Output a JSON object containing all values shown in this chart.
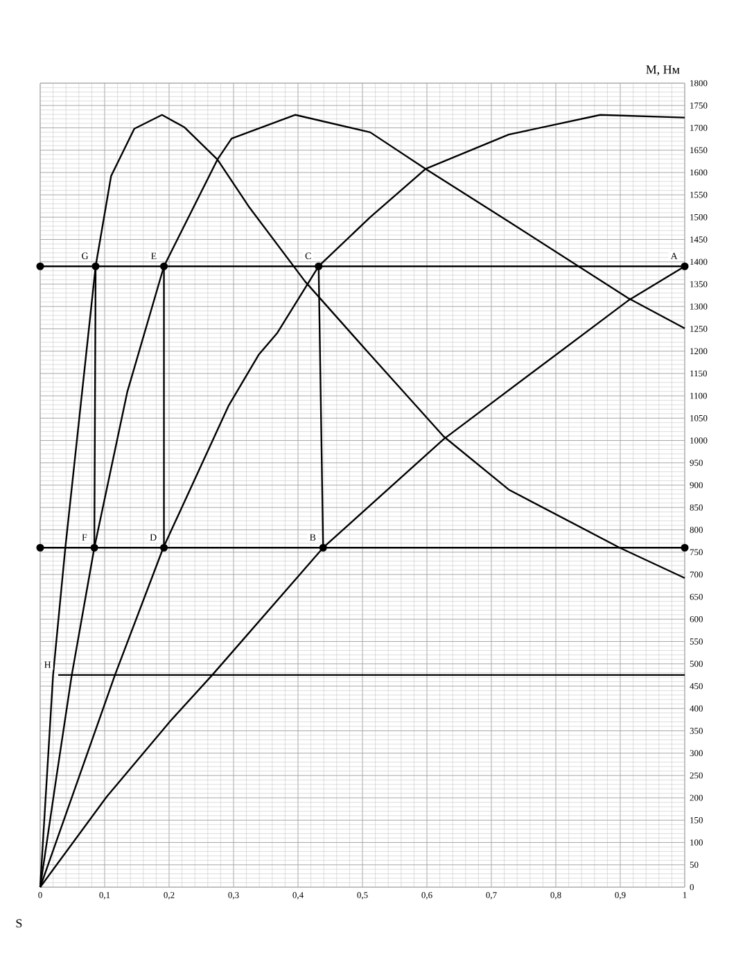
{
  "chart_data": {
    "type": "line",
    "xlabel": "S",
    "ylabel": "M, Нм",
    "xlim": [
      0,
      1
    ],
    "ylim": [
      0,
      1800
    ],
    "xticks": [
      0,
      {
        "value": 0.1,
        "label": "0,1"
      },
      {
        "value": 0.2,
        "label": "0,2"
      },
      {
        "value": 0.3,
        "label": "0,3"
      },
      {
        "value": 0.4,
        "label": "0,4"
      },
      {
        "value": 0.5,
        "label": "0,5"
      },
      {
        "value": 0.6,
        "label": "0,6"
      },
      {
        "value": 0.7,
        "label": "0,7"
      },
      {
        "value": 0.8,
        "label": "0,8"
      },
      {
        "value": 0.9,
        "label": "0,9"
      },
      1
    ],
    "yticks": [
      0,
      50,
      100,
      150,
      200,
      250,
      300,
      350,
      400,
      450,
      500,
      550,
      600,
      650,
      700,
      750,
      800,
      850,
      900,
      950,
      1000,
      1050,
      1100,
      1150,
      1200,
      1250,
      1300,
      1350,
      1400,
      1450,
      1500,
      1550,
      1600,
      1650,
      1700,
      1750,
      1800
    ],
    "grid": true,
    "marker": "none",
    "line_style": "solid",
    "series": [
      {
        "color": "#000000",
        "x": [
          0,
          0.02,
          0.039,
          0.086,
          0.11,
          0.146,
          0.189,
          0.224,
          0.275,
          0.325,
          0.411,
          0.512,
          0.626,
          0.727,
          0.899,
          1
        ],
        "values": [
          0,
          475,
          760,
          1390,
          1592,
          1698,
          1729,
          1701,
          1629,
          1521,
          1356,
          1192,
          1009,
          890,
          760,
          692
        ]
      },
      {
        "color": "#000000",
        "x": [
          0,
          0.025,
          0.049,
          0.084,
          0.135,
          0.192,
          0.275,
          0.297,
          0.396,
          0.512,
          0.598,
          0.727,
          0.912,
          1
        ],
        "values": [
          0,
          245,
          475,
          760,
          1108,
          1390,
          1629,
          1676,
          1729,
          1690,
          1608,
          1490,
          1319,
          1251
        ]
      },
      {
        "color": "#000000",
        "x": [
          0,
          0.116,
          0.191,
          0.292,
          0.339,
          0.368,
          0.432,
          0.512,
          0.598,
          0.727,
          0.869,
          1
        ],
        "values": [
          0,
          475,
          760,
          1077,
          1192,
          1241,
          1390,
          1500,
          1608,
          1685,
          1729,
          1723
        ]
      },
      {
        "color": "#000000",
        "x": [
          0,
          0.103,
          0.202,
          0.267,
          0.439,
          0.626,
          0.912,
          1
        ],
        "values": [
          0,
          202,
          372,
          475,
          760,
          1003,
          1313,
          1390
        ]
      },
      {
        "color": "#000000",
        "x": [
          0.028,
          1
        ],
        "values": [
          475,
          475
        ]
      },
      {
        "color": "#000000",
        "x": [
          0.086,
          0.084
        ],
        "values": [
          1390,
          760
        ]
      },
      {
        "color": "#000000",
        "x": [
          0.192,
          0.192
        ],
        "values": [
          1390,
          760
        ]
      },
      {
        "color": "#000000",
        "x": [
          0.432,
          0.439
        ],
        "values": [
          1390,
          760
        ]
      },
      {
        "color": "#000000",
        "x": [
          0,
          1
        ],
        "values": [
          1390,
          1390
        ]
      },
      {
        "color": "#000000",
        "x": [
          0,
          1
        ],
        "values": [
          760,
          760
        ]
      },
      {
        "type": "scatter",
        "color": "#000000",
        "x": [
          0,
          0.086,
          0.192,
          0.432,
          1,
          0,
          0.084,
          0.192,
          0.439,
          1
        ],
        "values": [
          1390,
          1390,
          1390,
          1390,
          1390,
          760,
          760,
          760,
          760,
          760
        ],
        "marker": "circle"
      }
    ],
    "annotations": [
      {
        "text": "G",
        "x": 0.086,
        "y": 1390
      },
      {
        "text": "E",
        "x": 0.192,
        "y": 1390
      },
      {
        "text": "C",
        "x": 0.432,
        "y": 1390
      },
      {
        "text": "A",
        "x": 1,
        "y": 1390
      },
      {
        "text": "F",
        "x": 0.084,
        "y": 760
      },
      {
        "text": "D",
        "x": 0.192,
        "y": 760
      },
      {
        "text": "B",
        "x": 0.439,
        "y": 760
      },
      {
        "text": "H",
        "x": 0.028,
        "y": 475
      }
    ]
  }
}
